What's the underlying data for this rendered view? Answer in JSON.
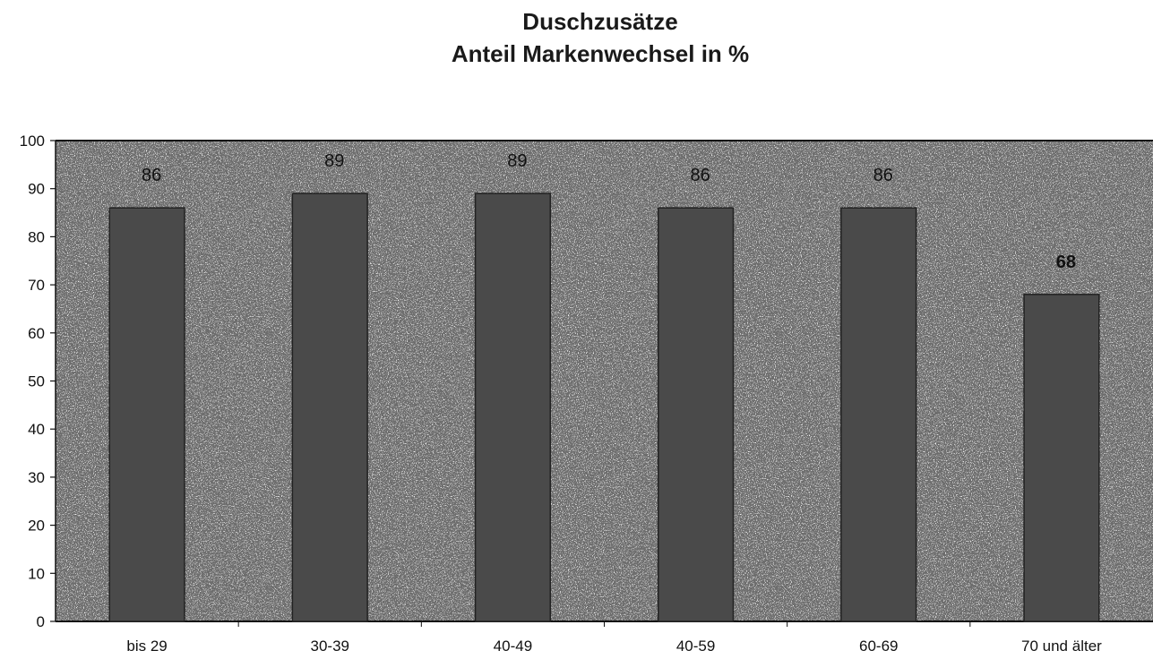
{
  "chart_data": {
    "type": "bar",
    "title": "Duschzusätze",
    "subtitle": "Anteil Markenwechsel in %",
    "categories": [
      "bis 29",
      "30-39",
      "40-49",
      "40-59",
      "60-69",
      "70 und älter"
    ],
    "values": [
      86,
      89,
      89,
      86,
      86,
      68
    ],
    "data_labels": [
      "86",
      "89",
      "89",
      "86",
      "86",
      "68"
    ],
    "ylim": [
      0,
      100
    ],
    "yticks": [
      "0",
      "10",
      "20",
      "30",
      "40",
      "50",
      "60",
      "70",
      "80",
      "90",
      "100"
    ],
    "xlabel": "",
    "ylabel": "",
    "grid": false,
    "legend": "none",
    "bar_color": "#4a4a4a",
    "bar_border_color": "#222222"
  }
}
